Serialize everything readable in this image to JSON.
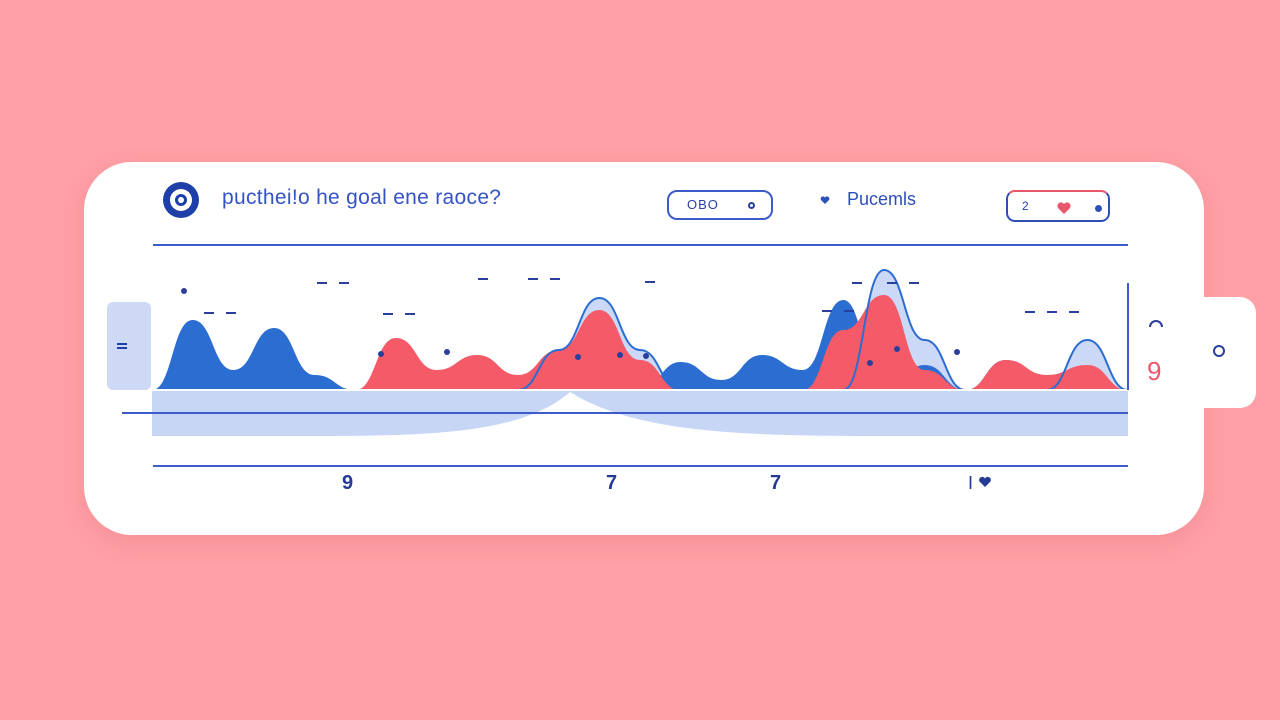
{
  "header": {
    "title": "pucthei!o he goal ene raoce?",
    "filter_pill_label": "OBO",
    "legend_label": "Pucemls",
    "favorite_count": "2"
  },
  "side_panel": {
    "value": "9"
  },
  "axis": {
    "ticks": [
      "9",
      "7",
      "7",
      "I"
    ]
  },
  "icons": {
    "logo": "ring-logo-icon",
    "heart": "heart-icon",
    "tab": "ring-icon"
  },
  "colors": {
    "blue": "#2b6dd0",
    "red": "#f45a68",
    "light_blue": "#c8d6f6",
    "navy": "#2a3f9c",
    "background": "#fea0a6"
  },
  "chart_data": {
    "type": "area",
    "x": [
      0,
      1,
      2,
      3,
      4,
      5,
      6,
      7,
      8,
      9,
      10,
      11,
      12,
      13,
      14,
      15,
      16,
      17,
      18,
      19,
      20,
      21,
      22,
      23,
      24
    ],
    "series": [
      {
        "values": [
          0,
          70,
          20,
          62,
          15,
          0,
          0,
          0,
          0,
          0,
          0,
          0,
          0,
          28,
          10,
          35,
          20,
          90,
          0,
          25,
          0,
          30,
          0,
          0,
          0
        ]
      },
      {
        "values": [
          0,
          0,
          0,
          0,
          0,
          0,
          52,
          20,
          35,
          15,
          40,
          80,
          30,
          0,
          0,
          0,
          0,
          60,
          95,
          20,
          0,
          30,
          15,
          25,
          0
        ]
      },
      {
        "values": [
          0,
          0,
          0,
          0,
          0,
          0,
          0,
          0,
          0,
          0,
          40,
          92,
          40,
          0,
          0,
          0,
          0,
          0,
          120,
          50,
          0,
          0,
          0,
          50,
          0
        ]
      }
    ]
  }
}
